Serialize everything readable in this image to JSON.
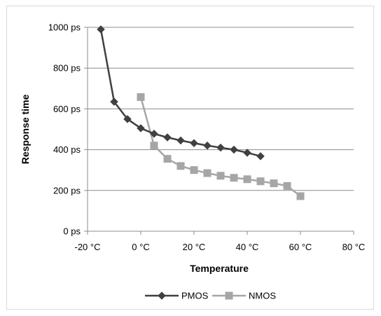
{
  "chart_data": {
    "type": "line",
    "title": "",
    "xlabel": "Temperature",
    "ylabel": "Response time",
    "xlim": [
      -20,
      80
    ],
    "ylim": [
      0,
      1000
    ],
    "x_ticks": [
      -20,
      0,
      20,
      40,
      60,
      80
    ],
    "x_tick_labels": [
      "-20 °C",
      "0 °C",
      "20 °C",
      "40 °C",
      "60 °C",
      "80 °C"
    ],
    "y_ticks": [
      0,
      200,
      400,
      600,
      800,
      1000
    ],
    "y_tick_labels": [
      "0 ps",
      "200 ps",
      "400 ps",
      "600 ps",
      "800 ps",
      "1000 ps"
    ],
    "grid": "horizontal",
    "legend_position": "bottom",
    "series": [
      {
        "name": "PMOS",
        "color": "#404040",
        "marker": "diamond",
        "x": [
          -15,
          -10,
          -5,
          0,
          5,
          10,
          15,
          20,
          25,
          30,
          35,
          40,
          45
        ],
        "y": [
          990,
          635,
          550,
          505,
          478,
          460,
          445,
          432,
          420,
          410,
          400,
          385,
          368
        ]
      },
      {
        "name": "NMOS",
        "color": "#a6a6a6",
        "marker": "square",
        "x": [
          0,
          5,
          10,
          15,
          20,
          25,
          30,
          35,
          40,
          45,
          50,
          55,
          60
        ],
        "y": [
          658,
          420,
          355,
          320,
          300,
          285,
          272,
          262,
          255,
          245,
          235,
          222,
          172
        ]
      }
    ]
  }
}
